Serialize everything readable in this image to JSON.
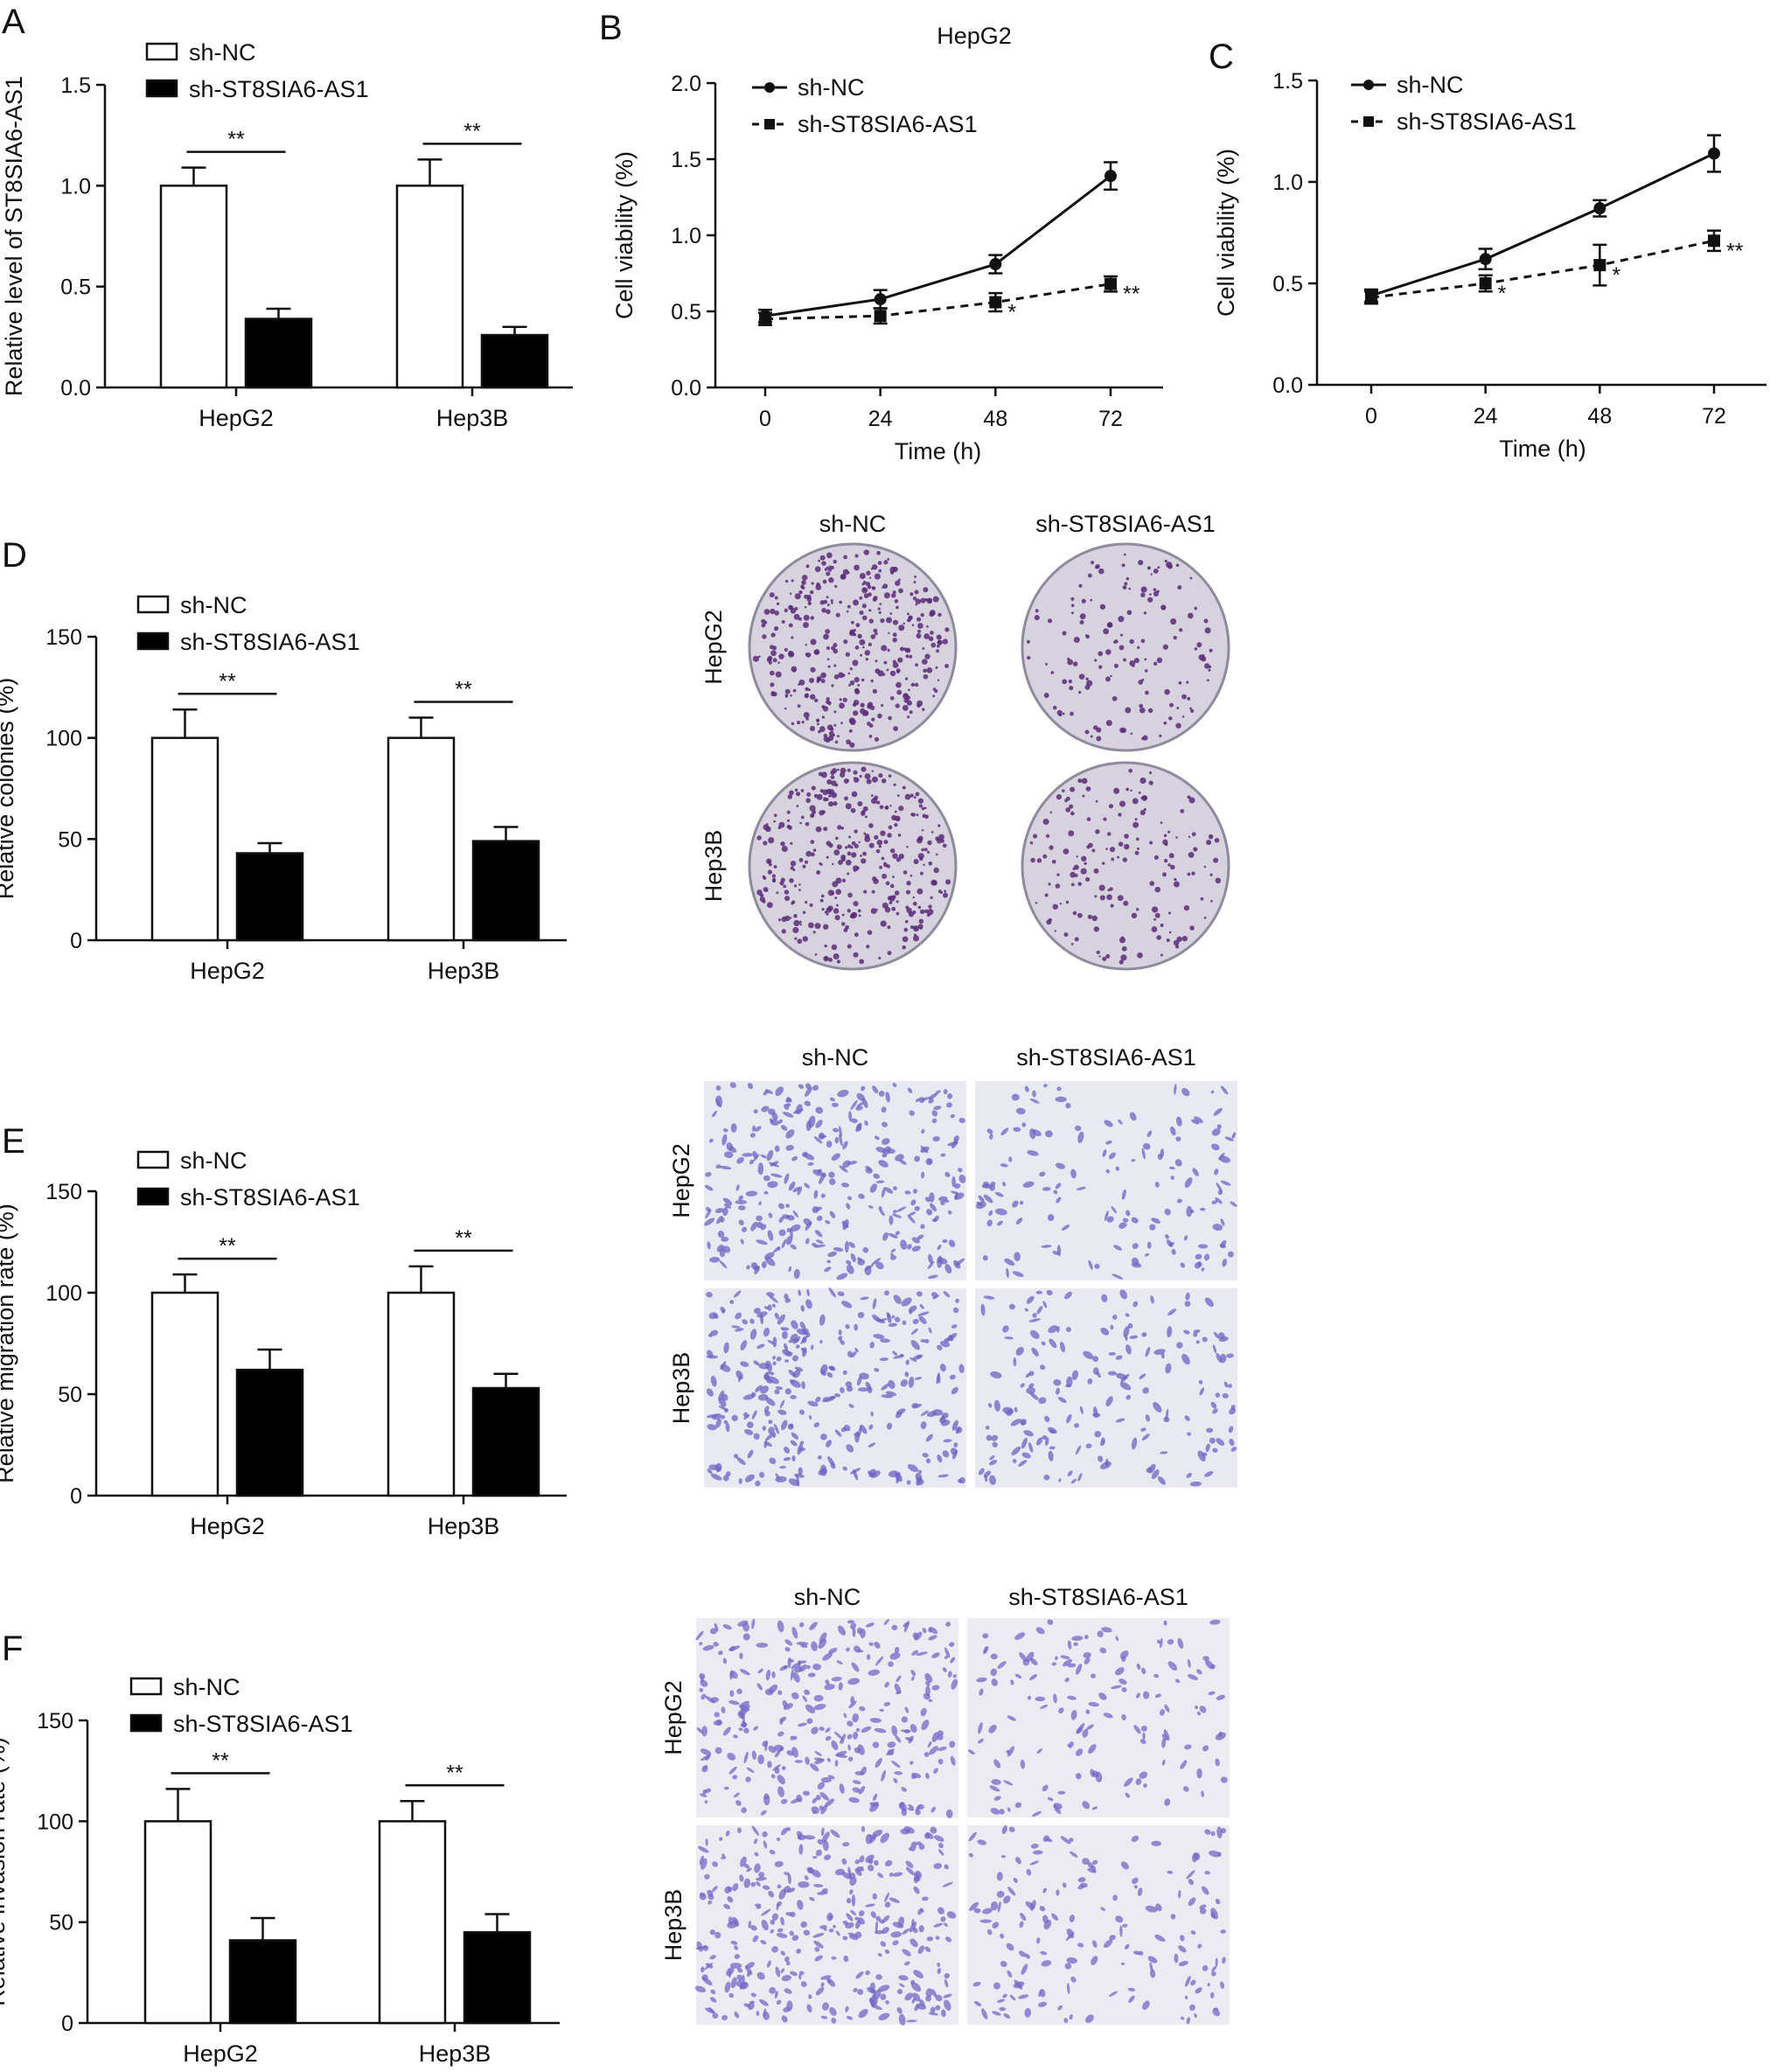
{
  "chart_data": [
    {
      "id": "A",
      "panel_label": "A",
      "type": "bar",
      "title": "",
      "xlabel": "",
      "ylabel": "Relative level of ST8SIA6-AS1",
      "ylim": [
        0,
        1.5
      ],
      "yticks": [
        "0.0",
        "0.5",
        "1.0",
        "1.5"
      ],
      "categories": [
        "HepG2",
        "Hep3B"
      ],
      "series": [
        {
          "name": "sh-NC",
          "fill": "#ffffff",
          "values": [
            1.0,
            1.0
          ],
          "errors": [
            0.09,
            0.13
          ]
        },
        {
          "name": "sh-ST8SIA6-AS1",
          "fill": "#000000",
          "values": [
            0.34,
            0.26
          ],
          "errors": [
            0.05,
            0.04
          ]
        }
      ],
      "significance": [
        "**",
        "**"
      ],
      "legend": "top-left",
      "grid": false
    },
    {
      "id": "B",
      "panel_label": "B",
      "type": "line",
      "title": "HepG2",
      "xlabel": "Time (h)",
      "ylabel": "Cell viability (%)",
      "ylim": [
        0,
        2.0
      ],
      "yticks": [
        "0.0",
        "0.5",
        "1.0",
        "1.5",
        "2.0"
      ],
      "x": [
        0,
        24,
        48,
        72
      ],
      "xticks": [
        "0",
        "24",
        "48",
        "72"
      ],
      "series": [
        {
          "name": "sh-NC",
          "marker": "circle",
          "dash": "solid",
          "values": [
            0.47,
            0.58,
            0.81,
            1.39
          ],
          "errors": [
            0.04,
            0.06,
            0.06,
            0.09
          ]
        },
        {
          "name": "sh-ST8SIA6-AS1",
          "marker": "square",
          "dash": "dashed",
          "values": [
            0.45,
            0.47,
            0.56,
            0.68
          ],
          "errors": [
            0.04,
            0.05,
            0.06,
            0.05
          ],
          "significance": [
            "",
            "",
            "*",
            "**"
          ]
        }
      ],
      "legend": "top-left",
      "grid": false
    },
    {
      "id": "C",
      "panel_label": "C",
      "type": "line",
      "title": "",
      "xlabel": "Time (h)",
      "ylabel": "Cell viability (%)",
      "ylim": [
        0,
        1.5
      ],
      "yticks": [
        "0.0",
        "0.5",
        "1.0",
        "1.5"
      ],
      "x": [
        0,
        24,
        48,
        72
      ],
      "xticks": [
        "0",
        "24",
        "48",
        "72"
      ],
      "series": [
        {
          "name": "sh-NC",
          "marker": "circle",
          "dash": "solid",
          "values": [
            0.44,
            0.62,
            0.87,
            1.14
          ],
          "errors": [
            0.03,
            0.05,
            0.04,
            0.09
          ]
        },
        {
          "name": "sh-ST8SIA6-AS1",
          "marker": "square",
          "dash": "dashed",
          "values": [
            0.43,
            0.5,
            0.59,
            0.71
          ],
          "errors": [
            0.03,
            0.04,
            0.1,
            0.05
          ],
          "significance": [
            "",
            "*",
            "*",
            "**"
          ]
        }
      ],
      "legend": "top-left",
      "grid": false
    },
    {
      "id": "D",
      "panel_label": "D",
      "type": "bar",
      "title": "",
      "xlabel": "",
      "ylabel": "Relative colonies (%)",
      "ylim": [
        0,
        150
      ],
      "yticks": [
        "0",
        "50",
        "100",
        "150"
      ],
      "categories": [
        "HepG2",
        "Hep3B"
      ],
      "series": [
        {
          "name": "sh-NC",
          "fill": "#ffffff",
          "values": [
            100,
            100
          ],
          "errors": [
            14,
            10
          ]
        },
        {
          "name": "sh-ST8SIA6-AS1",
          "fill": "#000000",
          "values": [
            43,
            49
          ],
          "errors": [
            5,
            7
          ]
        }
      ],
      "significance": [
        "**",
        "**"
      ],
      "legend": "top-left",
      "grid": false
    },
    {
      "id": "E",
      "panel_label": "E",
      "type": "bar",
      "title": "",
      "xlabel": "",
      "ylabel": "Relative migration rate (%)",
      "ylim": [
        0,
        150
      ],
      "yticks": [
        "0",
        "50",
        "100",
        "150"
      ],
      "categories": [
        "HepG2",
        "Hep3B"
      ],
      "series": [
        {
          "name": "sh-NC",
          "fill": "#ffffff",
          "values": [
            100,
            100
          ],
          "errors": [
            9,
            13
          ]
        },
        {
          "name": "sh-ST8SIA6-AS1",
          "fill": "#000000",
          "values": [
            62,
            53
          ],
          "errors": [
            10,
            7
          ]
        }
      ],
      "significance": [
        "**",
        "**"
      ],
      "legend": "top-left",
      "grid": false
    },
    {
      "id": "F",
      "panel_label": "F",
      "type": "bar",
      "title": "",
      "xlabel": "",
      "ylabel": "Relative invasion rate (%)",
      "ylim": [
        0,
        150
      ],
      "yticks": [
        "0",
        "50",
        "100",
        "150"
      ],
      "categories": [
        "HepG2",
        "Hep3B"
      ],
      "series": [
        {
          "name": "sh-NC",
          "fill": "#ffffff",
          "values": [
            100,
            100
          ],
          "errors": [
            16,
            10
          ]
        },
        {
          "name": "sh-ST8SIA6-AS1",
          "fill": "#000000",
          "values": [
            41,
            45
          ],
          "errors": [
            11,
            9
          ]
        }
      ],
      "significance": [
        "**",
        "**"
      ],
      "legend": "top-left",
      "grid": false
    }
  ],
  "image_panels": [
    {
      "id": "D-images",
      "kind": "colony-plates",
      "columns": [
        "sh-NC",
        "sh-ST8SIA6-AS1"
      ],
      "rows": [
        "HepG2",
        "Hep3B"
      ],
      "colors": {
        "plate": "#d6d3de",
        "stain": "#5a2a78",
        "rim": "#8f8a9c"
      },
      "density": [
        [
          0.9,
          0.35
        ],
        [
          0.85,
          0.4
        ]
      ]
    },
    {
      "id": "E-images",
      "kind": "transwell-migration",
      "columns": [
        "sh-NC",
        "sh-ST8SIA6-AS1"
      ],
      "rows": [
        "HepG2",
        "Hep3B"
      ],
      "colors": {
        "background": "#e9e9f1",
        "cell": "#6f63c2"
      },
      "density": [
        [
          0.85,
          0.4
        ],
        [
          0.9,
          0.5
        ]
      ]
    },
    {
      "id": "F-images",
      "kind": "transwell-invasion",
      "columns": [
        "sh-NC",
        "sh-ST8SIA6-AS1"
      ],
      "rows": [
        "HepG2",
        "Hep3B"
      ],
      "colors": {
        "background": "#ebebf1",
        "cell": "#7468c6"
      },
      "density": [
        [
          0.85,
          0.4
        ],
        [
          0.95,
          0.45
        ]
      ]
    }
  ]
}
